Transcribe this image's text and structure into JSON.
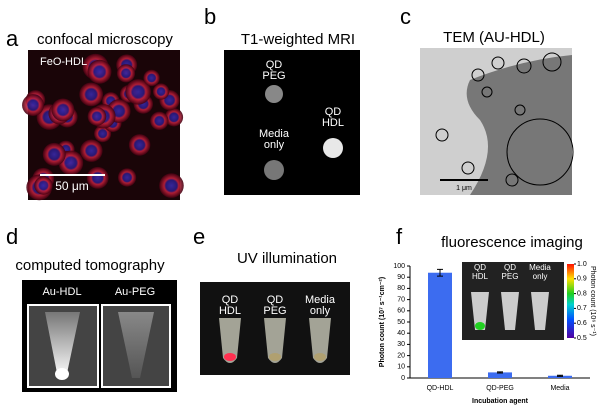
{
  "panels": {
    "a": {
      "letter": "a",
      "title": "confocal microscopy",
      "label": "FeO-HDL",
      "scale": "50 μm"
    },
    "b": {
      "letter": "b",
      "title": "T1-weighted MRI",
      "samples": [
        [
          "QD",
          "PEG"
        ],
        [
          "QD",
          "HDL"
        ],
        [
          "Media",
          "only"
        ]
      ]
    },
    "c": {
      "letter": "c",
      "title": "TEM (AU-HDL)",
      "scale": "1 μm"
    },
    "d": {
      "letter": "d",
      "title": "computed tomography",
      "samples": [
        "Au-HDL",
        "Au-PEG"
      ]
    },
    "e": {
      "letter": "e",
      "title": "UV illumination",
      "samples": [
        [
          "QD",
          "HDL"
        ],
        [
          "QD",
          "PEG"
        ],
        [
          "Media",
          "only"
        ]
      ]
    },
    "f": {
      "letter": "f",
      "title": "fluorescence imaging",
      "samples": [
        [
          "QD",
          "HDL"
        ],
        [
          "QD",
          "PEG"
        ],
        [
          "Media",
          "only"
        ]
      ],
      "colorbar": {
        "label": "Photon count (10⁶ s⁻¹)",
        "lim": [
          0.5,
          1
        ],
        "ticks": [
          0.5,
          0.6,
          0.7,
          0.8,
          0.9,
          {
            "value": 1,
            "label": "1.0"
          }
        ]
      }
    }
  },
  "chart_data": {
    "type": "bar",
    "y_label": "Photon count (10⁷ s⁻¹cm⁻²)",
    "x_label": "Incubation agent",
    "categories": [
      "QD-HDL",
      "QD-PEG",
      "Media"
    ],
    "values": [
      94,
      5,
      2
    ],
    "errors": [
      3,
      0.5,
      0.5
    ],
    "color": "#3c6cf0",
    "ylim": [
      0,
      100
    ],
    "yticks": [
      0,
      10,
      20,
      30,
      40,
      50,
      60,
      70,
      80,
      90,
      100
    ]
  }
}
